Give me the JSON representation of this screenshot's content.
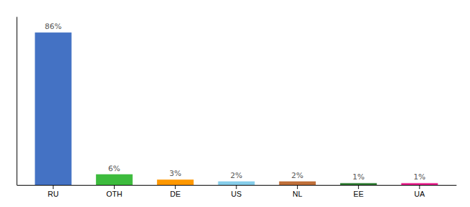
{
  "chart_data": {
    "type": "bar",
    "categories": [
      "RU",
      "OTH",
      "DE",
      "US",
      "NL",
      "EE",
      "UA"
    ],
    "values": [
      86,
      6,
      3,
      2,
      2,
      1,
      1
    ],
    "colors": [
      "#4472c4",
      "#3dbb3d",
      "#ff9800",
      "#87ceeb",
      "#c0703a",
      "#2e7d32",
      "#e91e8c"
    ],
    "value_labels": [
      "86%",
      "6%",
      "3%",
      "2%",
      "2%",
      "1%",
      "1%"
    ],
    "data_labels": true,
    "ylim": [
      0,
      95
    ],
    "tick_labels": "x"
  }
}
